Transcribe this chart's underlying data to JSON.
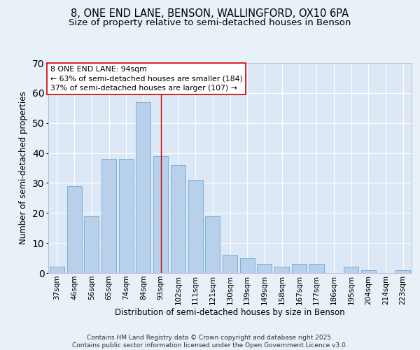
{
  "title1": "8, ONE END LANE, BENSON, WALLINGFORD, OX10 6PA",
  "title2": "Size of property relative to semi-detached houses in Benson",
  "xlabel": "Distribution of semi-detached houses by size in Benson",
  "ylabel": "Number of semi-detached properties",
  "categories": [
    "37sqm",
    "46sqm",
    "56sqm",
    "65sqm",
    "74sqm",
    "84sqm",
    "93sqm",
    "102sqm",
    "111sqm",
    "121sqm",
    "130sqm",
    "139sqm",
    "149sqm",
    "158sqm",
    "167sqm",
    "177sqm",
    "186sqm",
    "195sqm",
    "204sqm",
    "214sqm",
    "223sqm"
  ],
  "values": [
    2,
    29,
    19,
    38,
    38,
    57,
    39,
    36,
    31,
    19,
    6,
    5,
    3,
    2,
    3,
    3,
    0,
    2,
    1,
    0,
    1
  ],
  "bar_color": "#b8d0ea",
  "bar_edge_color": "#6aaad4",
  "bar_width": 0.85,
  "highlight_label": "8 ONE END LANE: 94sqm",
  "pct_smaller": "63% of semi-detached houses are smaller (184)",
  "pct_larger": "37% of semi-detached houses are larger (107)",
  "vline_color": "#cc0000",
  "vline_x_index": 6,
  "ylim": [
    0,
    70
  ],
  "yticks": [
    0,
    10,
    20,
    30,
    40,
    50,
    60,
    70
  ],
  "bg_color": "#e8f0f8",
  "plot_bg": "#dce8f5",
  "footer": "Contains HM Land Registry data © Crown copyright and database right 2025.\nContains public sector information licensed under the Open Government Licence v3.0.",
  "title_fontsize": 10.5,
  "subtitle_fontsize": 9.5,
  "axis_label_fontsize": 8.5,
  "tick_fontsize": 7.5,
  "annotation_fontsize": 7.8,
  "footer_fontsize": 6.5
}
